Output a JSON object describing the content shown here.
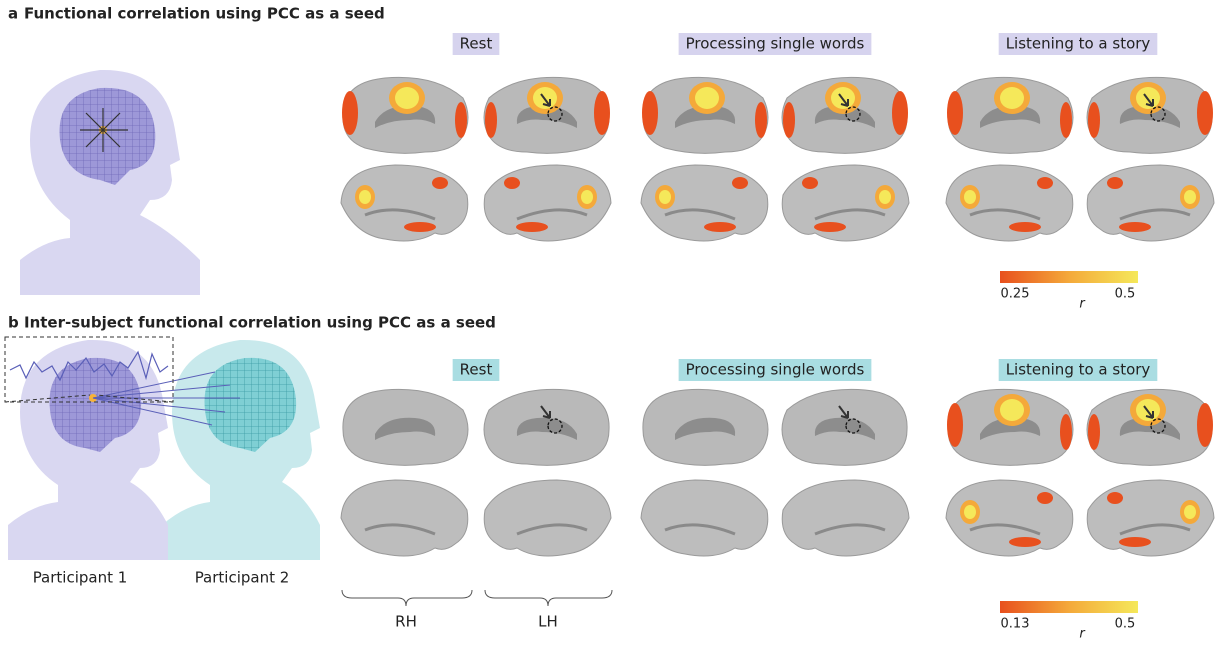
{
  "panels": [
    {
      "letter": "a",
      "title": "Functional correlation using PCC as a seed",
      "conditions": [
        "Rest",
        "Processing single words",
        "Listening to a story"
      ],
      "colorbar": {
        "min": 0.25,
        "max": 0.5,
        "label": "r"
      }
    },
    {
      "letter": "b",
      "title": "Inter-subject functional correlation using PCC as a seed",
      "conditions": [
        "Rest",
        "Processing single words",
        "Listening to a story"
      ],
      "participants": [
        "Participant 1",
        "Participant 2"
      ],
      "hemispheres": [
        "RH",
        "LH"
      ],
      "colorbar": {
        "min": 0.13,
        "max": 0.5,
        "label": "r"
      }
    }
  ]
}
